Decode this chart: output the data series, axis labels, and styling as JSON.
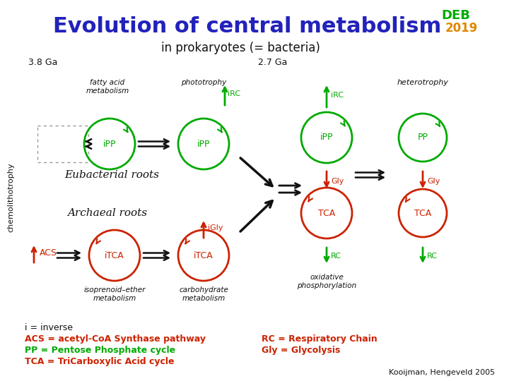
{
  "title": "Evolution of central metabolism",
  "subtitle": "in prokaryotes (= bacteria)",
  "year": "2019",
  "label_38": "3.8 Ga",
  "label_27": "2.7 Ga",
  "green": "#00aa00",
  "dark_red": "#cc2200",
  "orange": "#dd8800",
  "blue_title": "#2222bb",
  "black": "#111111",
  "gray": "#888888",
  "bg": "#ffffff",
  "credit": "Kooijman, Hengeveld 2005"
}
